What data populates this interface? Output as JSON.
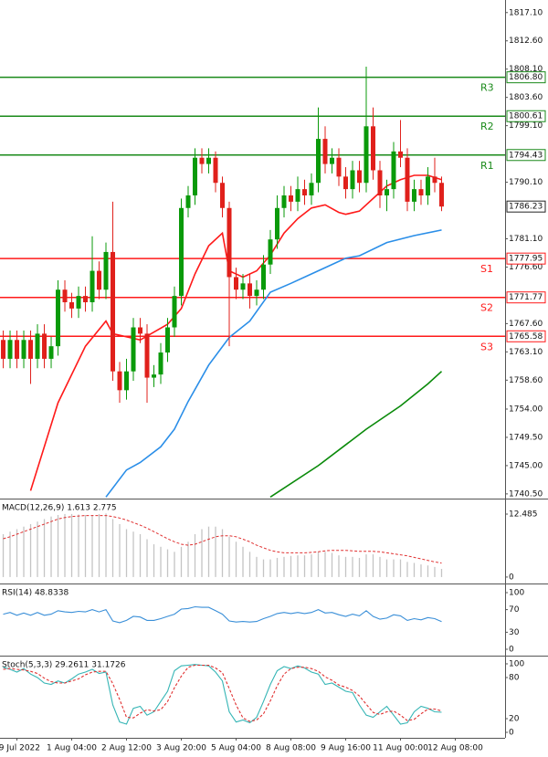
{
  "chart_data": [
    {
      "type": "candlestick",
      "xlim": [
        -0.47,
        73.27
      ],
      "ylim": [
        1739.9,
        1819.1
      ],
      "yticks": [
        {
          "value": 1817.1,
          "label": "1817.10"
        },
        {
          "value": 1812.6,
          "label": "1812.60"
        },
        {
          "value": 1808.1,
          "label": "1808.10"
        },
        {
          "value": 1803.6,
          "label": "1803.60"
        },
        {
          "value": 1799.1,
          "label": "1799.10"
        },
        {
          "value": 1790.1,
          "label": "1790.10"
        },
        {
          "value": 1781.1,
          "label": "1781.10"
        },
        {
          "value": 1776.6,
          "label": "1776.60"
        },
        {
          "value": 1767.6,
          "label": "1767.60"
        },
        {
          "value": 1763.1,
          "label": "1763.10"
        },
        {
          "value": 1758.6,
          "label": "1758.60"
        },
        {
          "value": 1754,
          "label": "1754.00"
        },
        {
          "value": 1749.5,
          "label": "1749.50"
        },
        {
          "value": 1745,
          "label": "1745.00"
        },
        {
          "value": 1740.5,
          "label": "1740.50"
        }
      ],
      "up_color": "#0a9a0a",
      "down_color": "#e0201b",
      "open": [
        1765,
        1762,
        1765,
        1762,
        1765,
        1762,
        1766,
        1762,
        1764,
        1773,
        1771,
        1770,
        1772,
        1771,
        1776,
        1773,
        1779,
        1760,
        1757,
        1760,
        1767,
        1766,
        1759,
        1759.5,
        1763,
        1767,
        1772,
        1786,
        1788,
        1794,
        1793,
        1794,
        1790,
        1786,
        1775,
        1773,
        1774,
        1772,
        1773,
        1777,
        1781,
        1786,
        1788,
        1787,
        1789,
        1788,
        1790,
        1797,
        1793,
        1794,
        1791,
        1789,
        1792,
        1790,
        1799,
        1792,
        1788,
        1789,
        1795,
        1794,
        1787,
        1789,
        1788,
        1791,
        1790
      ],
      "high": [
        1766.5,
        1766.5,
        1766.5,
        1766.5,
        1766.5,
        1767.5,
        1767.5,
        1765.5,
        1774.5,
        1774.5,
        1772.5,
        1773.5,
        1773.5,
        1781.5,
        1777.5,
        1780.5,
        1787,
        1761.5,
        1762,
        1768.5,
        1768.5,
        1767.5,
        1761,
        1764.5,
        1768.5,
        1773.5,
        1787.5,
        1789.5,
        1795.5,
        1795.5,
        1795.5,
        1795,
        1791,
        1787,
        1776.5,
        1775.5,
        1775.5,
        1774.5,
        1778.5,
        1782.5,
        1788,
        1789.5,
        1789.5,
        1791,
        1790.5,
        1791.5,
        1802,
        1799,
        1795.5,
        1795.5,
        1792.5,
        1793.5,
        1793.5,
        1808.5,
        1802,
        1793.5,
        1790.5,
        1796.5,
        1800,
        1795.5,
        1790.5,
        1790.5,
        1792.5,
        1794,
        1791
      ],
      "low": [
        1760.5,
        1760.5,
        1760.5,
        1760.5,
        1758,
        1760.5,
        1760.5,
        1760.5,
        1762.5,
        1769.5,
        1768.5,
        1768.5,
        1769.5,
        1769.5,
        1771.5,
        1771.5,
        1758.5,
        1755,
        1755.5,
        1758.5,
        1764.5,
        1755,
        1757.5,
        1758,
        1761.5,
        1765.5,
        1770.5,
        1784.5,
        1786.5,
        1791.5,
        1791.5,
        1788.5,
        1784.5,
        1764,
        1771.5,
        1771.5,
        1770,
        1770.5,
        1771.5,
        1775.5,
        1779.5,
        1784.5,
        1785.5,
        1785.5,
        1786.5,
        1786.5,
        1788.5,
        1791.5,
        1791.5,
        1789.5,
        1787.5,
        1787.5,
        1788.5,
        1788.5,
        1790.5,
        1786,
        1785.5,
        1787.5,
        1792.5,
        1785.5,
        1785.5,
        1786.5,
        1786.5,
        1788.5,
        1785.5
      ],
      "close": [
        1762,
        1765,
        1762,
        1765,
        1762,
        1766,
        1762,
        1764,
        1773,
        1771,
        1770,
        1772,
        1771,
        1776,
        1773,
        1779,
        1760,
        1757,
        1760,
        1767,
        1766,
        1759,
        1759.5,
        1763,
        1767,
        1772,
        1786,
        1788,
        1794,
        1793,
        1794,
        1790,
        1786,
        1775,
        1773,
        1774,
        1772,
        1773,
        1777,
        1781,
        1786,
        1788,
        1787,
        1789,
        1788,
        1790,
        1797,
        1793,
        1794,
        1791,
        1789,
        1792,
        1790,
        1799,
        1792,
        1788,
        1789,
        1795,
        1794,
        1787,
        1789,
        1788,
        1791,
        1790,
        1786.23
      ],
      "series": [
        {
          "color": "#ff1a1a",
          "x": [
            4,
            8,
            12,
            15,
            16,
            20,
            24,
            26,
            28,
            30,
            32,
            33,
            35,
            37,
            39,
            41,
            43,
            45,
            47,
            49,
            50,
            52,
            54,
            56,
            58,
            60,
            62,
            64
          ],
          "values": [
            1741,
            1755,
            1764,
            1768,
            1766,
            1765,
            1767.5,
            1770,
            1775.5,
            1780,
            1782,
            1776,
            1775,
            1776,
            1778.5,
            1782,
            1784.3,
            1786,
            1786.5,
            1785.3,
            1785,
            1785.5,
            1787.5,
            1789.5,
            1790.5,
            1791.2,
            1791.2,
            1790.5
          ]
        },
        {
          "color": "#2a8ee8",
          "x": [
            15,
            18,
            20,
            23,
            25,
            27,
            30,
            33,
            36,
            39,
            42,
            45,
            47,
            50,
            52,
            56,
            60,
            64
          ],
          "values": [
            1740,
            1744.3,
            1745.5,
            1748,
            1750.8,
            1755.2,
            1761,
            1765.4,
            1768,
            1772.6,
            1774,
            1775.5,
            1776.5,
            1778,
            1778.4,
            1780.5,
            1781.6,
            1782.5
          ]
        },
        {
          "color": "#0a8a0a",
          "x": [
            39,
            46,
            53,
            58,
            62,
            64
          ],
          "values": [
            1740,
            1745,
            1750.8,
            1754.5,
            1758,
            1760
          ]
        }
      ],
      "levels": [
        {
          "name": "R3",
          "value": 1806.8,
          "label": "1806.80",
          "color": "#1a8a1a"
        },
        {
          "name": "R2",
          "value": 1800.61,
          "label": "1800.61",
          "color": "#1a8a1a"
        },
        {
          "name": "R1",
          "value": 1794.43,
          "label": "1794.43",
          "color": "#1a8a1a"
        },
        {
          "name": "S1",
          "value": 1777.95,
          "label": "1777.95",
          "color": "#ff1a1a"
        },
        {
          "name": "S2",
          "value": 1771.77,
          "label": "1771.77",
          "color": "#ff1a1a"
        },
        {
          "name": "S3",
          "value": 1765.58,
          "label": "1765.58",
          "color": "#ff1a1a"
        }
      ],
      "last_price": 1786.23
    },
    {
      "type": "combo",
      "title": "MACD(12,26,9) 1.613 2.775",
      "xlim": [
        -0.47,
        73.27
      ],
      "ylim": [
        -1.1,
        15.2
      ],
      "yticks": [
        12.485,
        0
      ],
      "series": [
        {
          "type": "bar",
          "color": "#c4c4c4",
          "values": [
            8.5,
            9,
            9.5,
            10,
            10.5,
            11,
            11.5,
            12,
            12.3,
            12.5,
            12.5,
            12.4,
            12.3,
            12.3,
            12.5,
            12.6,
            11.5,
            10.5,
            9.5,
            9,
            8.5,
            7.5,
            6.5,
            6,
            5.5,
            5,
            6,
            7,
            8.5,
            9.5,
            10,
            10,
            9.5,
            8,
            7,
            6,
            5,
            4,
            3.5,
            3.5,
            3.8,
            4,
            4.2,
            4.3,
            4.3,
            4.5,
            5,
            5,
            4.8,
            4.3,
            4,
            4,
            3.8,
            4.5,
            4.5,
            4,
            3.5,
            3.5,
            3.5,
            3,
            2.8,
            2.5,
            2.3,
            2,
            1.613
          ]
        },
        {
          "type": "line",
          "color": "#e03030",
          "dashed": true,
          "values": [
            7.6,
            8,
            8.5,
            9,
            9.5,
            10,
            10.5,
            11,
            11.5,
            11.8,
            12,
            12.1,
            12.2,
            12.2,
            12.2,
            12.2,
            12,
            11.7,
            11.3,
            10.8,
            10.3,
            9.7,
            9,
            8.3,
            7.6,
            7,
            6.5,
            6.3,
            6.5,
            7,
            7.5,
            8,
            8.2,
            8.2,
            8,
            7.5,
            7,
            6.3,
            5.8,
            5.3,
            5,
            4.8,
            4.8,
            4.8,
            4.8,
            4.9,
            5,
            5.2,
            5.3,
            5.3,
            5.3,
            5.2,
            5.1,
            5.1,
            5.1,
            5,
            4.8,
            4.6,
            4.4,
            4.2,
            3.9,
            3.6,
            3.3,
            3,
            2.775
          ]
        }
      ]
    },
    {
      "type": "line",
      "title": "RSI(14) 48.8338",
      "xlim": [
        -0.47,
        73.27
      ],
      "ylim": [
        -9.7,
        112.9
      ],
      "yticks": [
        100,
        70,
        30,
        0
      ],
      "series": [
        {
          "color": "#3a8fd8",
          "values": [
            62,
            65,
            60,
            64,
            60,
            65,
            60,
            62,
            68,
            66,
            65,
            67,
            66,
            70,
            66,
            70,
            50,
            47,
            51,
            58,
            57,
            51,
            51,
            54,
            58,
            62,
            71,
            72,
            75,
            74,
            74,
            68,
            62,
            50,
            48,
            49,
            48,
            49,
            54,
            58,
            63,
            65,
            63,
            65,
            63,
            65,
            70,
            64,
            65,
            61,
            58,
            62,
            59,
            68,
            58,
            53,
            55,
            61,
            59,
            51,
            54,
            52,
            56,
            54,
            48.8338
          ]
        }
      ]
    },
    {
      "type": "line",
      "title": "Stoch(5,3,3) 29.2611 31.1726",
      "xlim": [
        -0.47,
        73.27
      ],
      "ylim": [
        -8,
        109.3
      ],
      "yticks": [
        100,
        80,
        20,
        0
      ],
      "xticks": [
        {
          "value": 2,
          "label": "29 Jul 2022"
        },
        {
          "value": 10,
          "label": "1 Aug 04:00"
        },
        {
          "value": 18,
          "label": "2 Aug 12:00"
        },
        {
          "value": 26,
          "label": "3 Aug 20:00"
        },
        {
          "value": 34,
          "label": "5 Aug 04:00"
        },
        {
          "value": 42,
          "label": "8 Aug 08:00"
        },
        {
          "value": 50,
          "label": "9 Aug 16:00"
        },
        {
          "value": 58,
          "label": "11 Aug 00:00"
        },
        {
          "value": 66,
          "label": "12 Aug 08:00"
        }
      ],
      "series": [
        {
          "color": "#35b5b5",
          "values": [
            95,
            92,
            88,
            93,
            85,
            80,
            72,
            70,
            75,
            72,
            78,
            85,
            88,
            92,
            86,
            88,
            40,
            15,
            12,
            35,
            38,
            25,
            30,
            45,
            60,
            90,
            97,
            98,
            99,
            98,
            97,
            88,
            75,
            30,
            15,
            18,
            14,
            22,
            45,
            70,
            90,
            96,
            93,
            97,
            94,
            88,
            85,
            70,
            72,
            66,
            60,
            58,
            40,
            25,
            22,
            30,
            38,
            25,
            12,
            14,
            30,
            38,
            35,
            30,
            29.2611
          ]
        },
        {
          "color": "#e03030",
          "dashed": true,
          "values": [
            92,
            93,
            92,
            91,
            89,
            86,
            79,
            74,
            72,
            72,
            75,
            78,
            84,
            88,
            89,
            89,
            71,
            48,
            22,
            21,
            28,
            33,
            31,
            33,
            45,
            65,
            82,
            95,
            98,
            98,
            98,
            94,
            87,
            64,
            40,
            21,
            16,
            18,
            27,
            46,
            68,
            85,
            93,
            95,
            95,
            93,
            89,
            81,
            76,
            69,
            66,
            61,
            53,
            41,
            29,
            26,
            30,
            31,
            25,
            17,
            19,
            27,
            34,
            34,
            31.1726
          ]
        }
      ]
    }
  ]
}
